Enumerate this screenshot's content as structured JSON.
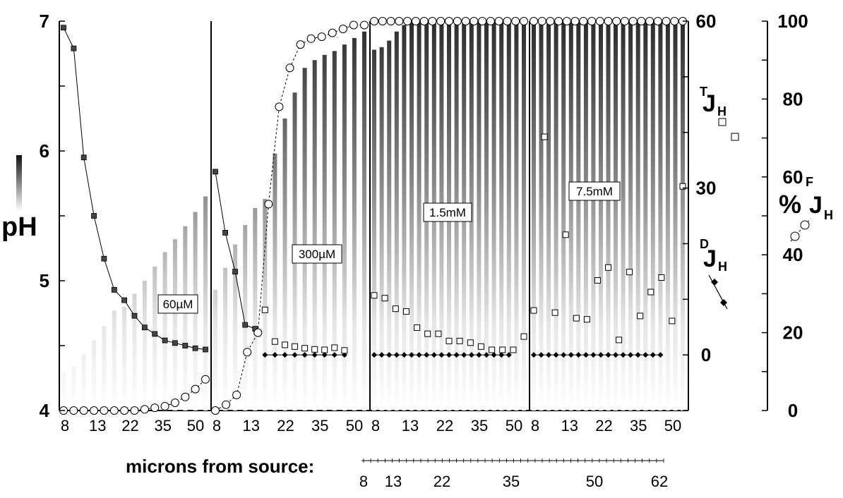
{
  "chart_data": {
    "type": "bar",
    "ylabel": "pH",
    "left_axis": {
      "ticks": [
        "4",
        "5",
        "6",
        "7"
      ],
      "ylim": [
        4,
        7
      ]
    },
    "right_axis_j": {
      "ticks": [
        "0",
        "30",
        "60"
      ],
      "ylim": [
        -10,
        60
      ]
    },
    "right_axis_pct": {
      "label": "%",
      "ticks": [
        "0",
        "20",
        "40",
        "60",
        "80",
        "100"
      ],
      "ylim": [
        0,
        100
      ]
    },
    "x_tick_labels": [
      "8",
      "13",
      "22",
      "35",
      "50"
    ],
    "xlabel": "microns from source:",
    "scale_bar_labels": [
      "8",
      "13",
      "22",
      "35",
      "50",
      "62"
    ],
    "legend": [
      {
        "key": "TJH",
        "sup": "T",
        "main": "J",
        "sub": "H",
        "marker": "open-square"
      },
      {
        "key": "DJH",
        "sup": "D",
        "main": "J",
        "sub": "H",
        "marker": "filled-diamond-line"
      },
      {
        "key": "FJH",
        "sup": "F",
        "main": "J",
        "sub": "H",
        "marker": "open-circle-dashed"
      }
    ],
    "panels": [
      {
        "label": "60µM",
        "pH": [
          4.29,
          4.34,
          4.43,
          4.54,
          4.65,
          4.77,
          4.8,
          4.9,
          5.0,
          5.11,
          5.22,
          5.32,
          5.42,
          5.53,
          5.65
        ],
        "pH_curve": [
          6.95,
          6.79,
          5.95,
          5.5,
          5.17,
          4.93,
          4.85,
          4.73,
          4.64,
          4.59,
          4.54,
          4.52,
          4.5,
          4.48,
          4.47
        ],
        "TJ": [],
        "DJ": [],
        "F_pct": [
          0,
          0,
          0,
          0,
          0,
          0,
          0,
          0,
          0.3,
          0.7,
          1.1,
          2,
          3.5,
          5.5,
          8
        ]
      },
      {
        "label": "300µM",
        "pH": [
          4.93,
          5.1,
          5.28,
          5.43,
          5.56,
          5.63,
          5.98,
          6.25,
          6.45,
          6.64,
          6.7,
          6.74,
          6.77,
          6.82,
          6.87,
          6.92
        ],
        "pH_curve": [
          5.84,
          5.37,
          5.07,
          4.66,
          4.63
        ],
        "TJ": [
          8.1,
          2.4,
          1.8,
          1.5,
          1.2,
          1,
          0.9,
          1.3,
          0.8
        ],
        "DJ": [
          0.0,
          0.0,
          0.0,
          0.0,
          0.0,
          0.0,
          0.0,
          0.0,
          0.0
        ],
        "F_pct": [
          0,
          1.5,
          4,
          15,
          20,
          53,
          78,
          88,
          94,
          95.5,
          96,
          97,
          98,
          99,
          99
        ]
      },
      {
        "label": "1.5mM",
        "pH": [
          6.78,
          6.8,
          6.85,
          6.92,
          6.97,
          7,
          7,
          7,
          7,
          7,
          7,
          7,
          7,
          7,
          7,
          7,
          7,
          7,
          7,
          7,
          7
        ],
        "TJ": [
          10.7,
          10.2,
          8.3,
          7.8,
          4.9,
          3.8,
          3.8,
          2.5,
          2.5,
          2.2,
          1.5,
          0.9,
          0.9,
          0.9,
          3.3
        ],
        "DJ": [
          0,
          0,
          0,
          0,
          0,
          0,
          0,
          0,
          0,
          0,
          0,
          0,
          0,
          0,
          0,
          0,
          0,
          0,
          0
        ],
        "F_pct": [
          100,
          100,
          100,
          100,
          100,
          100,
          100,
          100,
          100,
          100,
          100,
          100,
          100,
          100,
          100,
          100,
          100,
          100,
          100
        ]
      },
      {
        "label": "7.5mM",
        "pH": [
          7,
          7,
          7,
          7,
          7,
          7,
          7,
          7,
          7,
          7,
          7,
          7,
          7,
          7,
          7,
          7,
          7,
          7,
          7,
          7,
          7
        ],
        "TJ": [
          8.0,
          39.2,
          7.6,
          21.6,
          6.6,
          6.4,
          13.4,
          15.7,
          2.7,
          14.9,
          7.0,
          11.3,
          13.9,
          6.1,
          30.3
        ],
        "DJ": [
          0,
          0,
          0,
          0,
          0,
          0,
          0,
          0,
          0,
          0,
          0,
          0,
          0,
          0,
          0,
          0,
          0,
          0
        ],
        "F_pct": [
          100,
          100,
          100,
          100,
          100,
          100,
          100,
          100,
          100,
          100,
          100,
          100,
          100,
          100,
          100,
          100,
          100,
          100,
          100
        ]
      }
    ]
  }
}
